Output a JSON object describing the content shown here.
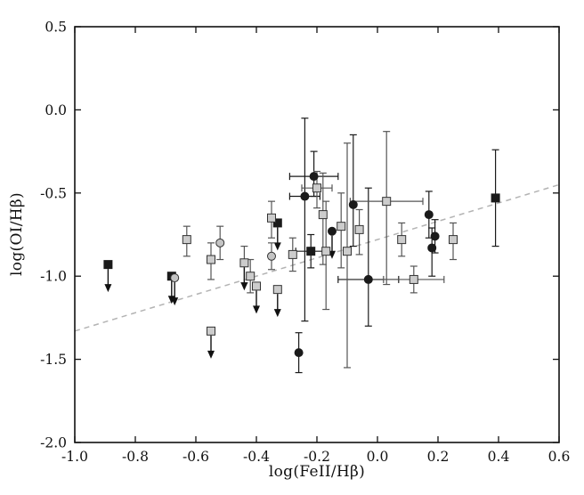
{
  "chart_data": {
    "type": "scatter",
    "title": "",
    "xlabel": "log(FeII/Hβ)",
    "ylabel": "log(OI/Hβ)",
    "xlim": [
      -1.0,
      0.6
    ],
    "ylim": [
      -2.0,
      0.5
    ],
    "xticks": [
      -1.0,
      -0.8,
      -0.6,
      -0.4,
      -0.2,
      0.0,
      0.2,
      0.4,
      0.6
    ],
    "xtick_labels": [
      "-1.0",
      "-0.8",
      "-0.6",
      "-0.4",
      "-0.2",
      "0.0",
      "0.2",
      "0.4",
      "0.6"
    ],
    "yticks": [
      0.5,
      0.0,
      -0.5,
      -1.0,
      -1.5,
      -2.0
    ],
    "ytick_labels": [
      "0.5",
      "0.0",
      "-0.5",
      "-1.0",
      "-1.5",
      "-2.0"
    ],
    "grid": false,
    "legend": "none",
    "frame_color": "#111111",
    "fit_line": {
      "style": "dashed",
      "color": "#b3b3b3",
      "x0": -1.0,
      "y0": -1.33,
      "x1": 0.6,
      "y1": -0.45
    },
    "series": [
      {
        "name": "black-circles",
        "marker": "circle",
        "fill": "#1a1a1a",
        "edge": "#1a1a1a",
        "err_color": "#1a1a1a",
        "points": [
          {
            "x": -0.26,
            "y": -1.46,
            "ey": [
              0.12,
              0.12
            ]
          },
          {
            "x": -0.24,
            "y": -0.52,
            "ey": [
              0.75,
              0.47
            ],
            "ex": 0.05
          },
          {
            "x": -0.21,
            "y": -0.4,
            "ey": [
              0.12,
              0.15
            ],
            "ex": 0.08
          },
          {
            "x": -0.15,
            "y": -0.73,
            "ul": true
          },
          {
            "x": -0.08,
            "y": -0.57,
            "ey": [
              0.25,
              0.42
            ]
          },
          {
            "x": -0.03,
            "y": -1.02,
            "ey": [
              0.28,
              0.55
            ],
            "ex": 0.1
          },
          {
            "x": 0.17,
            "y": -0.63,
            "ey": [
              0.14,
              0.14
            ]
          },
          {
            "x": 0.19,
            "y": -0.76,
            "ey": [
              0.1,
              0.1
            ]
          },
          {
            "x": 0.18,
            "y": -0.83,
            "ey": [
              0.17,
              0.12
            ]
          }
        ]
      },
      {
        "name": "black-squares",
        "marker": "square",
        "fill": "#1a1a1a",
        "edge": "#1a1a1a",
        "err_color": "#1a1a1a",
        "points": [
          {
            "x": -0.89,
            "y": -0.93,
            "ul": true
          },
          {
            "x": -0.68,
            "y": -1.0,
            "ul": true
          },
          {
            "x": -0.33,
            "y": -0.68,
            "ul": true
          },
          {
            "x": -0.22,
            "y": -0.85,
            "ey": [
              0.1,
              0.1
            ],
            "ex": 0.05
          },
          {
            "x": 0.39,
            "y": -0.53,
            "ey": [
              0.29,
              0.29
            ]
          }
        ]
      },
      {
        "name": "gray-squares",
        "marker": "square",
        "fill": "#cccccc",
        "edge": "#333333",
        "err_color": "#555555",
        "points": [
          {
            "x": -0.63,
            "y": -0.78,
            "ey": [
              0.1,
              0.08
            ]
          },
          {
            "x": -0.55,
            "y": -0.9,
            "ey": [
              0.12,
              0.1
            ]
          },
          {
            "x": -0.55,
            "y": -1.33,
            "ul": true
          },
          {
            "x": -0.44,
            "y": -0.92,
            "ey": [
              0.12,
              0.1
            ],
            "ul": true
          },
          {
            "x": -0.42,
            "y": -1.0,
            "ey": [
              0.1,
              0.1
            ]
          },
          {
            "x": -0.4,
            "y": -1.06,
            "ul": true
          },
          {
            "x": -0.35,
            "y": -0.65,
            "ey": [
              0.12,
              0.1
            ]
          },
          {
            "x": -0.33,
            "y": -1.08,
            "ul": true
          },
          {
            "x": -0.28,
            "y": -0.87,
            "ey": [
              0.1,
              0.1
            ]
          },
          {
            "x": -0.2,
            "y": -0.47,
            "ey": [
              0.12,
              0.1
            ],
            "ex": 0.05
          },
          {
            "x": -0.18,
            "y": -0.63,
            "ey": [
              0.3,
              0.25
            ]
          },
          {
            "x": -0.17,
            "y": -0.85,
            "ey": [
              0.35,
              0.3
            ]
          },
          {
            "x": -0.12,
            "y": -0.7,
            "ey": [
              0.25,
              0.2
            ]
          },
          {
            "x": -0.1,
            "y": -0.85,
            "ey": [
              0.7,
              0.65
            ]
          },
          {
            "x": -0.06,
            "y": -0.72,
            "ey": [
              0.15,
              0.12
            ]
          },
          {
            "x": 0.03,
            "y": -0.55,
            "ey": [
              0.5,
              0.42
            ],
            "ex": 0.12
          },
          {
            "x": 0.08,
            "y": -0.78,
            "ey": [
              0.1,
              0.1
            ]
          },
          {
            "x": 0.12,
            "y": -1.02,
            "ey": [
              0.08,
              0.08
            ],
            "ex": 0.1
          },
          {
            "x": 0.25,
            "y": -0.78,
            "ey": [
              0.12,
              0.1
            ]
          }
        ]
      },
      {
        "name": "gray-circles",
        "marker": "circle",
        "fill": "#c4c4c4",
        "edge": "#333333",
        "err_color": "#555555",
        "points": [
          {
            "x": -0.67,
            "y": -1.01,
            "ul": true
          },
          {
            "x": -0.52,
            "y": -0.8,
            "ey": [
              0.1,
              0.1
            ]
          },
          {
            "x": -0.35,
            "y": -0.88,
            "ey": [
              0.08,
              0.08
            ]
          }
        ]
      }
    ]
  }
}
